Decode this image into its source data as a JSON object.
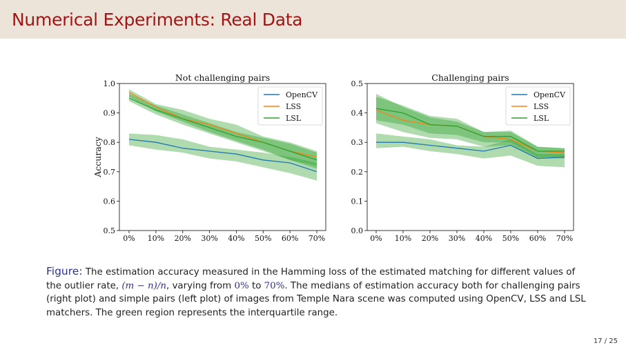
{
  "slide": {
    "title": "Numerical Experiments: Real Data",
    "page": "17 / 25"
  },
  "caption": {
    "label": "Figure:",
    "part1": " The estimation accuracy measured in the Hamming loss of the estimated matching for different values of the outlier rate, ",
    "math1": "(m − n)/n",
    "part2": ", varying from ",
    "math2": "0%",
    "part3": " to ",
    "math3": "70%",
    "part4": ". The medians of estimation accuracy both for challenging pairs (right plot) and simple pairs (left plot) of images from Temple Nara scene was computed using OpenCV, LSS and LSL matchers. The green region represents the interquartile range."
  },
  "colors": {
    "header_bg": "#ede4d9",
    "title": "#a31515",
    "opencv": "#1f77b4",
    "lss": "#ff7f0e",
    "lsl": "#2ca02c",
    "band": "#2ca02c"
  },
  "chart_data": [
    {
      "type": "line",
      "title": "Not challenging pairs",
      "xlabel": "",
      "ylabel": "Accuracy",
      "categories": [
        "0%",
        "10%",
        "20%",
        "30%",
        "40%",
        "50%",
        "60%",
        "70%"
      ],
      "ylim": [
        0.5,
        1.0
      ],
      "yticks": [
        "0.5",
        "0.6",
        "0.7",
        "0.8",
        "0.9",
        "1.0"
      ],
      "legend": "top-right",
      "grid": false,
      "series": [
        {
          "name": "OpenCV",
          "values": [
            0.81,
            0.8,
            0.78,
            0.77,
            0.76,
            0.74,
            0.73,
            0.7
          ],
          "iqr_low": [
            0.79,
            0.775,
            0.765,
            0.745,
            0.735,
            0.715,
            0.695,
            0.67
          ],
          "iqr_high": [
            0.83,
            0.825,
            0.81,
            0.785,
            0.775,
            0.765,
            0.75,
            0.73
          ]
        },
        {
          "name": "LSS",
          "values": [
            0.97,
            0.92,
            0.88,
            0.86,
            0.83,
            0.8,
            0.77,
            0.75
          ],
          "iqr_low": [
            0.955,
            0.905,
            0.87,
            0.835,
            0.805,
            0.775,
            0.74,
            0.72
          ],
          "iqr_high": [
            0.98,
            0.93,
            0.91,
            0.88,
            0.86,
            0.82,
            0.8,
            0.77
          ]
        },
        {
          "name": "LSL",
          "values": [
            0.95,
            0.91,
            0.88,
            0.85,
            0.82,
            0.8,
            0.77,
            0.74
          ],
          "iqr_low": [
            0.94,
            0.895,
            0.86,
            0.83,
            0.8,
            0.77,
            0.74,
            0.71
          ],
          "iqr_high": [
            0.965,
            0.925,
            0.895,
            0.865,
            0.835,
            0.815,
            0.795,
            0.765
          ]
        }
      ]
    },
    {
      "type": "line",
      "title": "Challenging pairs",
      "xlabel": "",
      "ylabel": "",
      "categories": [
        "0%",
        "10%",
        "20%",
        "30%",
        "40%",
        "50%",
        "60%",
        "70%"
      ],
      "ylim": [
        0.0,
        0.5
      ],
      "yticks": [
        "0.0",
        "0.1",
        "0.2",
        "0.3",
        "0.4",
        "0.5"
      ],
      "legend": "top-right",
      "grid": false,
      "series": [
        {
          "name": "OpenCV",
          "values": [
            0.3,
            0.3,
            0.29,
            0.28,
            0.27,
            0.29,
            0.245,
            0.25
          ],
          "iqr_low": [
            0.28,
            0.285,
            0.27,
            0.26,
            0.245,
            0.255,
            0.22,
            0.215
          ],
          "iqr_high": [
            0.33,
            0.32,
            0.31,
            0.29,
            0.285,
            0.31,
            0.26,
            0.26
          ]
        },
        {
          "name": "LSS",
          "values": [
            0.41,
            0.375,
            0.36,
            0.355,
            0.32,
            0.31,
            0.27,
            0.265
          ],
          "iqr_low": [
            0.365,
            0.335,
            0.315,
            0.31,
            0.285,
            0.29,
            0.245,
            0.245
          ],
          "iqr_high": [
            0.465,
            0.42,
            0.385,
            0.37,
            0.335,
            0.335,
            0.285,
            0.28
          ]
        },
        {
          "name": "LSL",
          "values": [
            0.415,
            0.4,
            0.36,
            0.355,
            0.32,
            0.32,
            0.27,
            0.27
          ],
          "iqr_low": [
            0.375,
            0.36,
            0.33,
            0.325,
            0.3,
            0.3,
            0.25,
            0.25
          ],
          "iqr_high": [
            0.455,
            0.425,
            0.39,
            0.38,
            0.335,
            0.34,
            0.285,
            0.28
          ]
        }
      ]
    }
  ]
}
